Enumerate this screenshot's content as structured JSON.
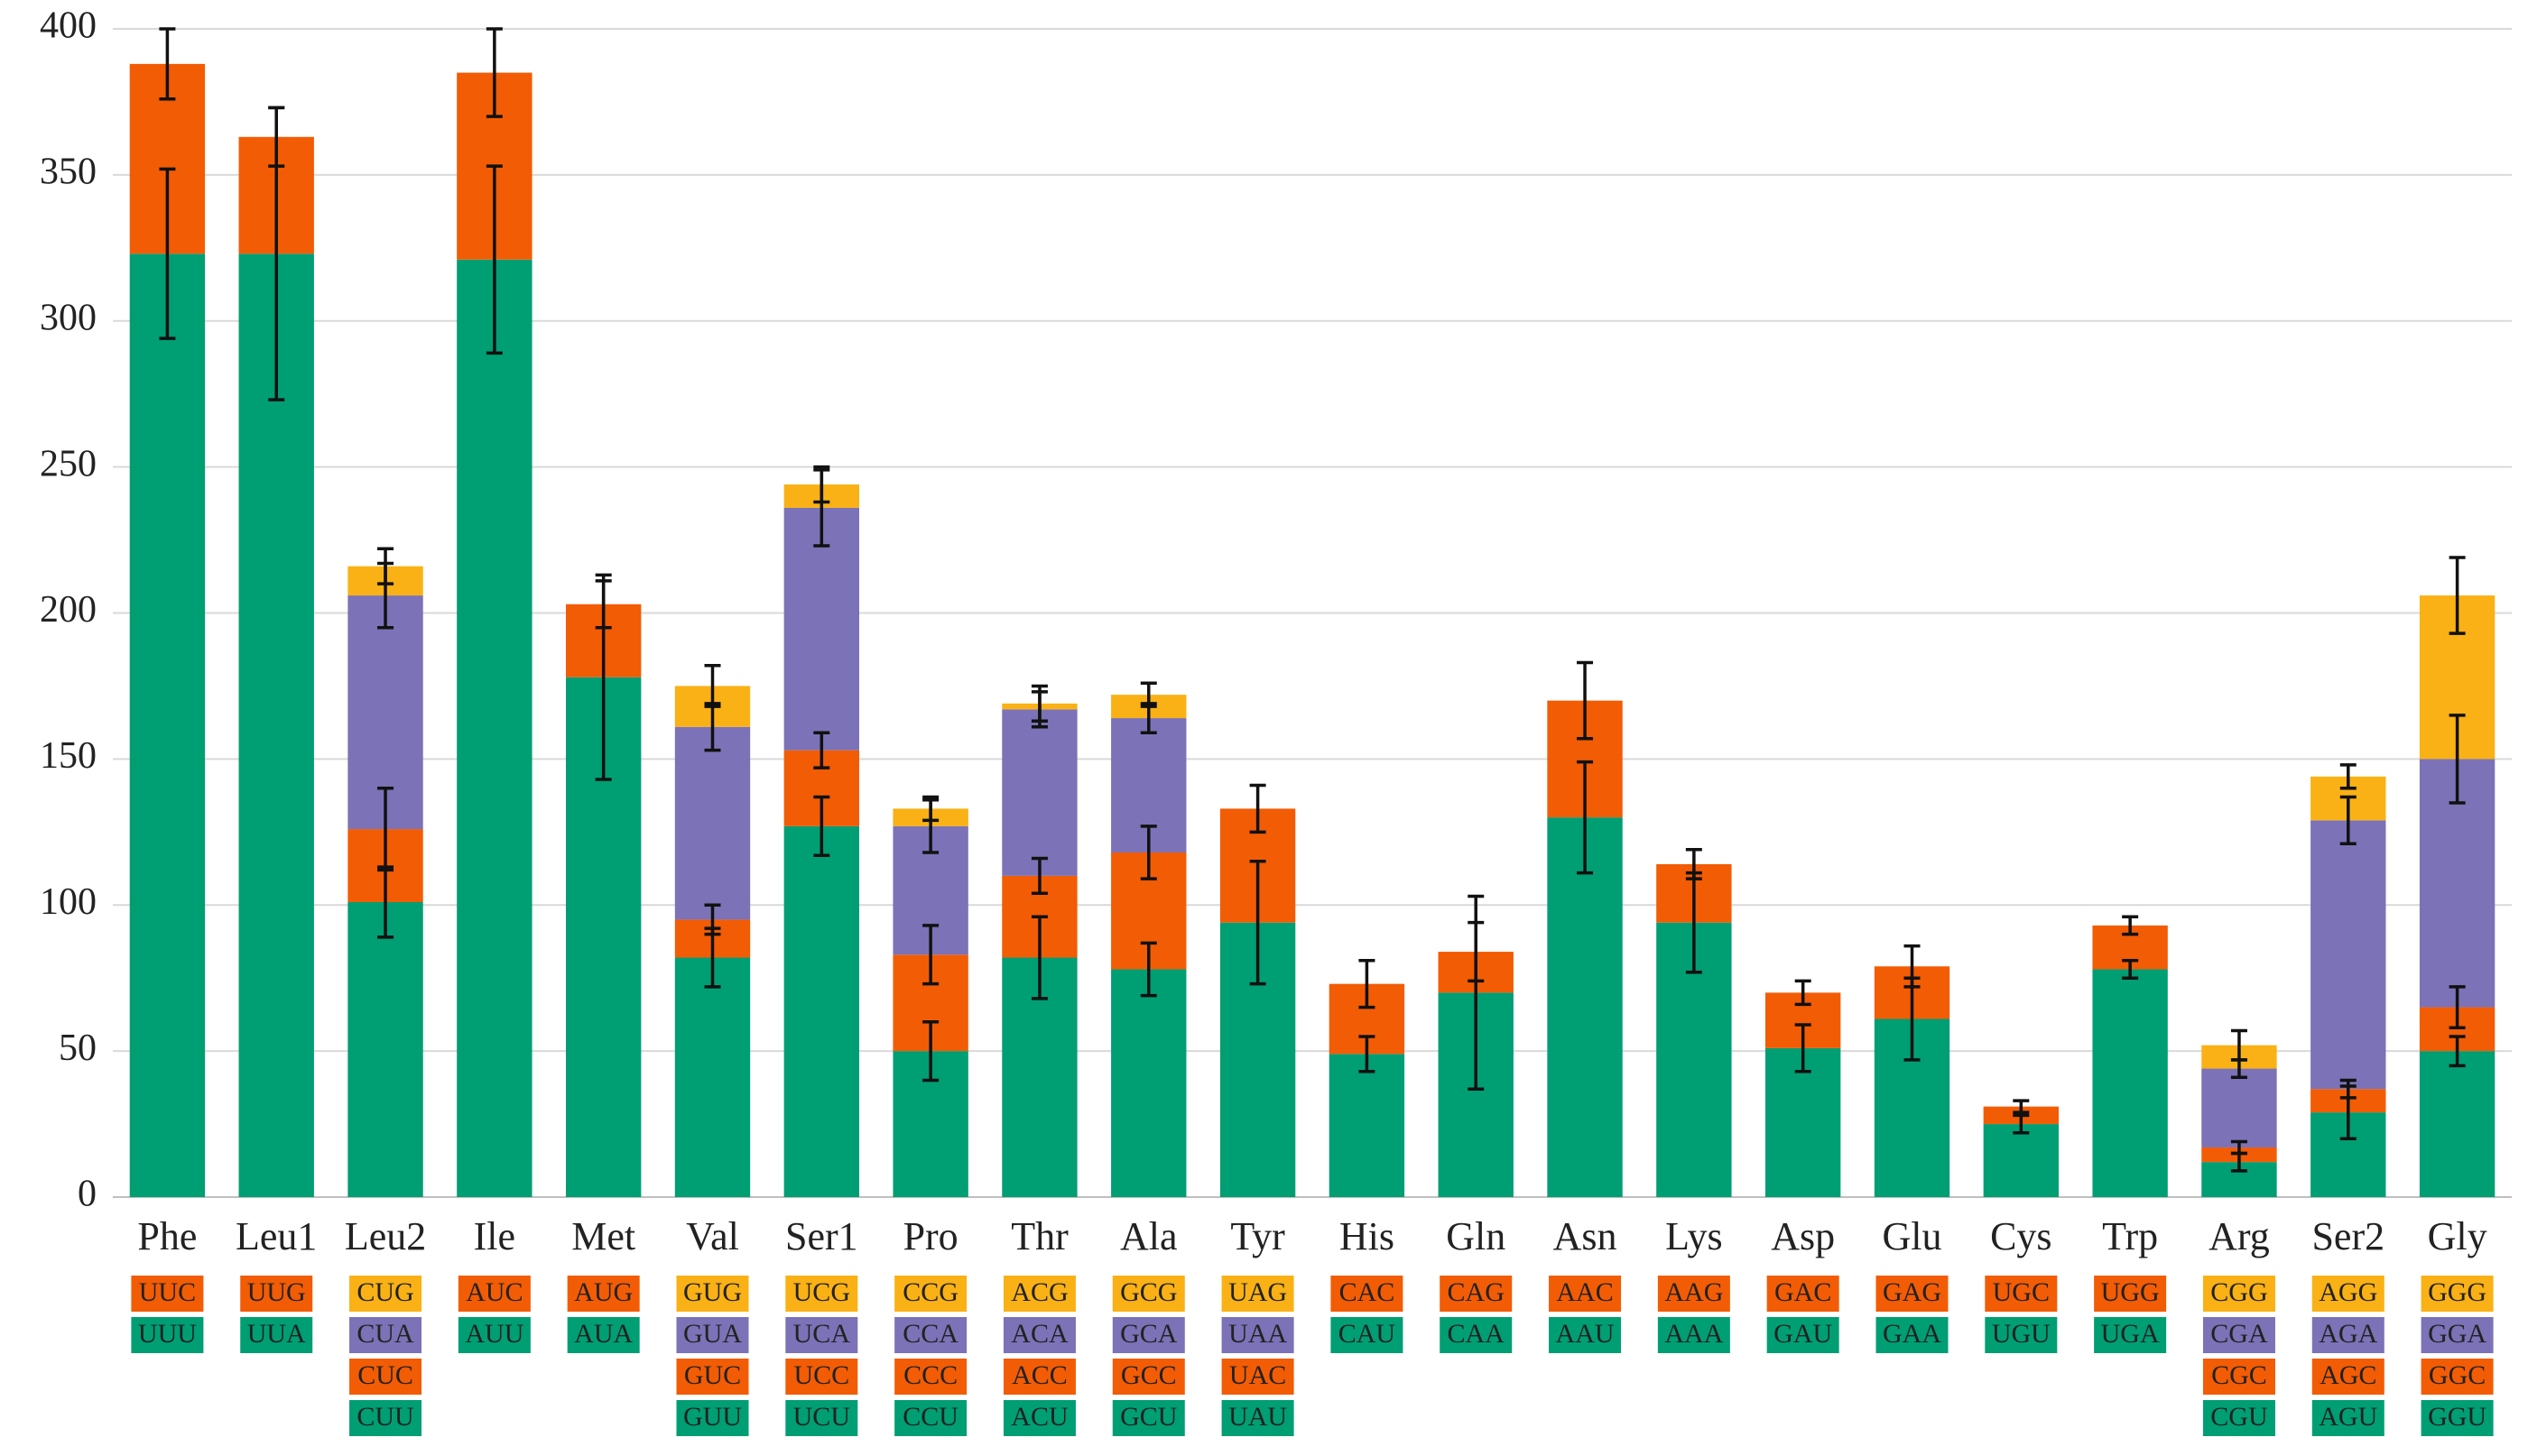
{
  "chart_data": {
    "type": "stacked_bar",
    "categories": [
      "Phe",
      "Leu1",
      "Leu2",
      "Ile",
      "Met",
      "Val",
      "Ser1",
      "Pro",
      "Thr",
      "Ala",
      "Tyr",
      "His",
      "Gln",
      "Asn",
      "Lys",
      "Asp",
      "Glu",
      "Cys",
      "Trp",
      "Arg",
      "Ser2",
      "Gly"
    ],
    "ylim": [
      0,
      400
    ],
    "yticks": [
      0,
      50,
      100,
      150,
      200,
      250,
      300,
      350,
      400
    ],
    "grid": true,
    "series": [
      {
        "color": "#009e73",
        "values": [
          323,
          323,
          101,
          321,
          178,
          82,
          127,
          50,
          82,
          78,
          94,
          49,
          70,
          130,
          94,
          51,
          61,
          25,
          78,
          12,
          29,
          50
        ],
        "errors": [
          29,
          50,
          12,
          32,
          35,
          10,
          10,
          10,
          14,
          9,
          21,
          6,
          33,
          19,
          17,
          8,
          14,
          3,
          3,
          3,
          9,
          5
        ],
        "codons": [
          "UUU",
          "UUA",
          "CUU",
          "AUU",
          "AUA",
          "GUU",
          "UCU",
          "CCU",
          "ACU",
          "GCU",
          "UAU",
          "CAU",
          "CAA",
          "AAU",
          "AAA",
          "GAU",
          "GAA",
          "UGU",
          "UGA",
          "CGU",
          "AGU",
          "GGU"
        ]
      },
      {
        "color": "#f25c05",
        "values": [
          65,
          40,
          25,
          64,
          25,
          13,
          26,
          33,
          28,
          40,
          39,
          24,
          14,
          40,
          20,
          19,
          18,
          6,
          15,
          5,
          8,
          15
        ],
        "errors": [
          12,
          10,
          14,
          15,
          8,
          5,
          6,
          10,
          6,
          9,
          8,
          8,
          10,
          13,
          5,
          4,
          7,
          2,
          3,
          2,
          3,
          7
        ],
        "codons": [
          "UUC",
          "UUG",
          "CUC",
          "AUC",
          "AUG",
          "GUC",
          "UCC",
          "CCC",
          "ACC",
          "GCC",
          "UAC",
          "CAC",
          "CAG",
          "AAC",
          "AAG",
          "GAC",
          "GAG",
          "UGC",
          "UGG",
          "CGC",
          "AGC",
          "GGC"
        ]
      },
      {
        "color": "#7b72b7",
        "values": [
          null,
          null,
          80,
          null,
          null,
          66,
          83,
          44,
          57,
          46,
          null,
          null,
          null,
          null,
          null,
          null,
          null,
          null,
          null,
          27,
          92,
          85
        ],
        "errors": [
          null,
          null,
          11,
          null,
          null,
          8,
          13,
          9,
          6,
          5,
          null,
          null,
          null,
          null,
          null,
          null,
          null,
          null,
          null,
          3,
          8,
          15
        ],
        "codons": [
          null,
          null,
          "CUA",
          null,
          null,
          "GUA",
          "UCA",
          "CCA",
          "ACA",
          "GCA",
          "UAA",
          null,
          null,
          null,
          null,
          null,
          null,
          null,
          null,
          "CGA",
          "AGA",
          "GGA"
        ]
      },
      {
        "color": "#f9b115",
        "values": [
          null,
          null,
          10,
          null,
          null,
          14,
          8,
          6,
          2,
          8,
          null,
          null,
          null,
          null,
          null,
          null,
          null,
          null,
          null,
          8,
          15,
          56
        ],
        "errors": [
          null,
          null,
          6,
          null,
          null,
          7,
          6,
          4,
          6,
          4,
          null,
          null,
          null,
          null,
          null,
          null,
          null,
          null,
          null,
          5,
          4,
          13
        ],
        "codons": [
          null,
          null,
          "CUG",
          null,
          null,
          "GUG",
          "UCG",
          "CCG",
          "ACG",
          "GCG",
          "UAG",
          null,
          null,
          null,
          null,
          null,
          null,
          null,
          null,
          "CGG",
          "AGG",
          "GGG"
        ]
      }
    ]
  }
}
